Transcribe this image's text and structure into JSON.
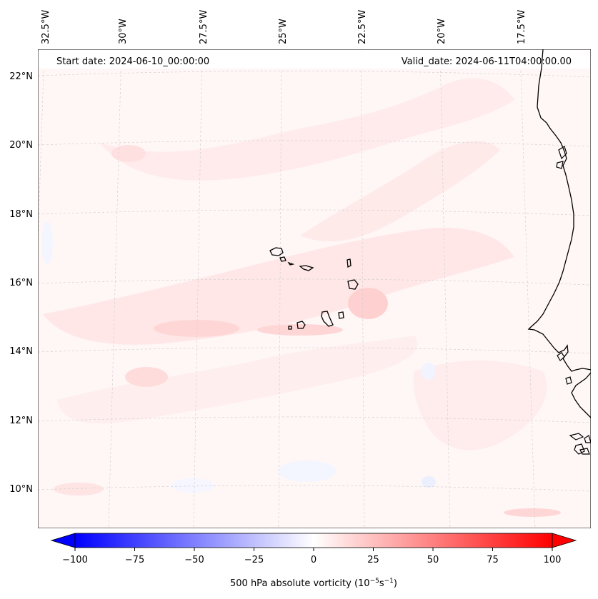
{
  "header": {
    "start_date": "Start date: 2024-06-10_00:00:00",
    "valid_date": "Valid_date: 2024-06-11T04:00:00.00"
  },
  "longitude_labels": [
    "32.5°W",
    "30°W",
    "27.5°W",
    "25°W",
    "22.5°W",
    "20°W",
    "17.5°W"
  ],
  "latitude_labels": [
    "22°N",
    "20°N",
    "18°N",
    "16°N",
    "14°N",
    "12°N",
    "10°N"
  ],
  "colorbar": {
    "label": "500 hPa absolute vorticity (10",
    "label_exp1": "−5",
    "label_mid": "s",
    "label_exp2": "−1",
    "label_close": ")",
    "ticks": [
      "−100",
      "−75",
      "−50",
      "−25",
      "0",
      "25",
      "50",
      "75",
      "100"
    ],
    "min": -100,
    "max": 100,
    "colormap": "bwr",
    "low_color": "#0000ff",
    "mid_color": "#ffffff",
    "high_color": "#ff0000"
  },
  "map": {
    "projection": "conic",
    "gridlines": true,
    "coastline_color": "#000000",
    "field_tint_color": "#ffe3e3"
  }
}
